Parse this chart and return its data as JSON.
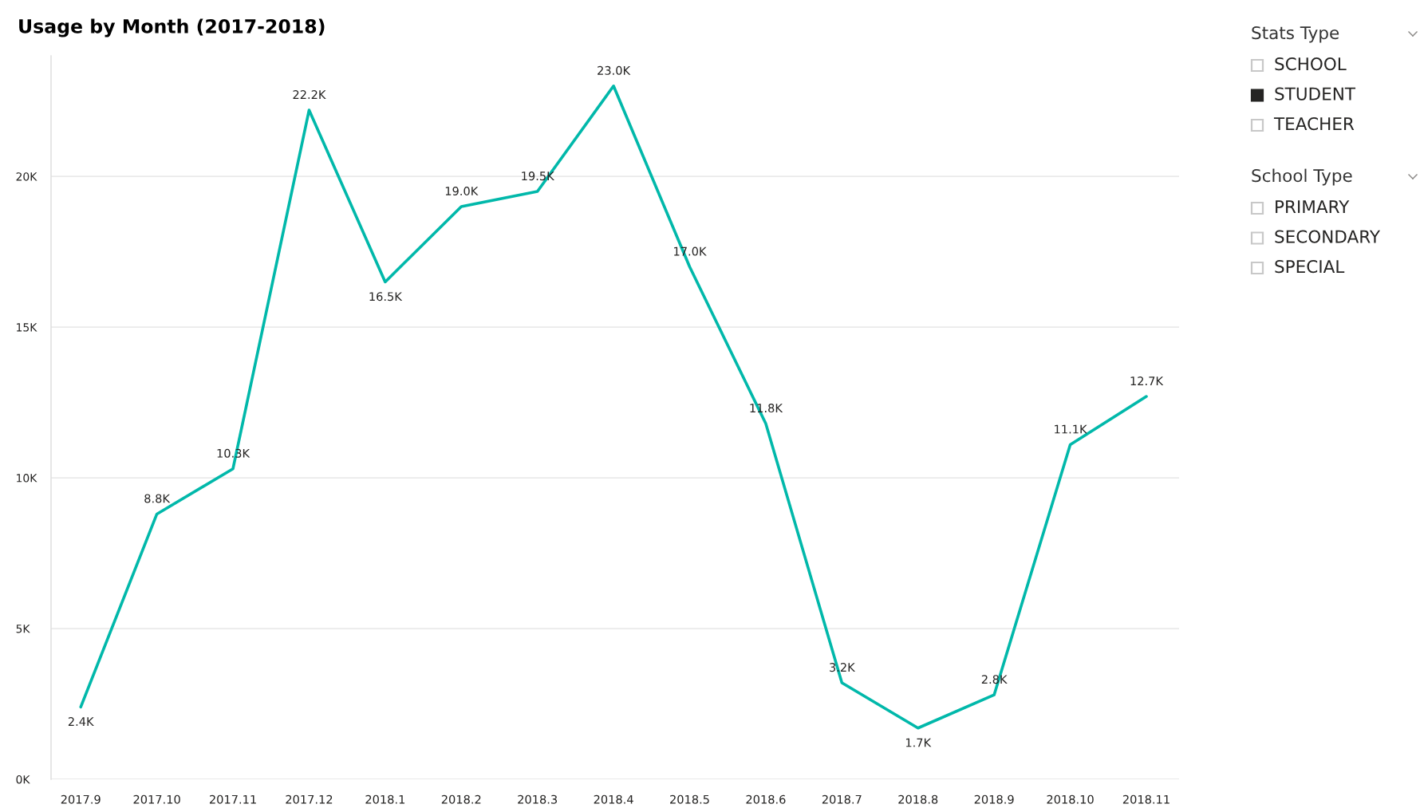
{
  "chart_data": [
    {
      "type": "line",
      "title": "Usage by Month (2017-2018)",
      "categories": [
        "2017.9",
        "2017.10",
        "2017.11",
        "2017.12",
        "2018.1",
        "2018.2",
        "2018.3",
        "2018.4",
        "2018.5",
        "2018.6",
        "2018.7",
        "2018.8",
        "2018.9",
        "2018.10",
        "2018.11"
      ],
      "series": [
        {
          "color": "#01b8aa",
          "values": [
            2400,
            8800,
            10300,
            22200,
            16500,
            19000,
            19500,
            23000,
            17000,
            11800,
            3200,
            1700,
            2800,
            11100,
            12700
          ],
          "value_labels": [
            "2.4K",
            "8.8K",
            "10.3K",
            "22.2K",
            "16.5K",
            "19.0K",
            "19.5K",
            "23.0K",
            "17.0K",
            "11.8K",
            "3.2K",
            "1.7K",
            "2.8K",
            "11.1K",
            "12.7K"
          ]
        }
      ],
      "ylim": [
        0,
        24000
      ],
      "yticks": [
        {
          "value": 0,
          "label": "0K"
        },
        {
          "value": 5000,
          "label": "5K"
        },
        {
          "value": 10000,
          "label": "10K"
        },
        {
          "value": 15000,
          "label": "15K"
        },
        {
          "value": 20000,
          "label": "20K"
        }
      ],
      "grid": "y"
    },
    {
      "type": "other",
      "title": "Stats Type",
      "categories": [
        "SCHOOL",
        "STUDENT",
        "TEACHER"
      ],
      "colors": [
        "#ffffff",
        "#252423",
        "#ffffff"
      ]
    },
    {
      "type": "other",
      "title": "School Type",
      "categories": [
        "PRIMARY",
        "SECONDARY",
        "SPECIAL"
      ],
      "colors": [
        "#ffffff",
        "#ffffff",
        "#ffffff"
      ]
    }
  ]
}
